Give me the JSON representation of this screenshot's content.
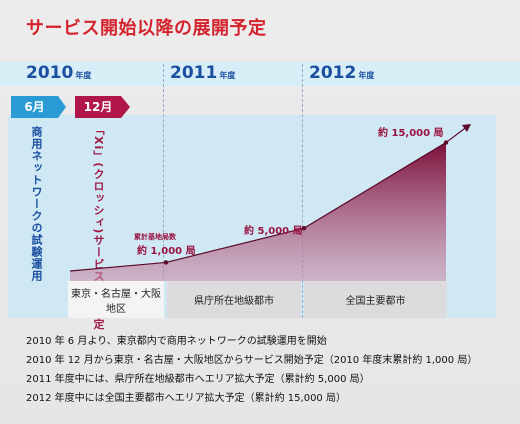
{
  "title": "サービス開始以降の展開予定",
  "years": [
    {
      "label": "2010",
      "suffix": "年度"
    },
    {
      "label": "2011",
      "suffix": "年度"
    },
    {
      "label": "2012",
      "suffix": "年度"
    }
  ],
  "tags": {
    "jun": "6月",
    "dec": "12月"
  },
  "vertical_texts": {
    "trial": "商用ネットワークの試験運用",
    "xi": "「Xi」(クロッシィ)サービス開始予定"
  },
  "regions": [
    "東京・名古屋・大阪地区",
    "県庁所在地級都市",
    "全国主要都市"
  ],
  "notes": [
    "2010 年 6 月より、東京都内で商用ネットワークの試験運用を開始",
    "2010 年 12 月から東京・名古屋・大阪地区からサービス開始予定（2010 年度末累計約 1,000 局）",
    "2011 年度中には、県庁所在地級都市へエリア拡大予定（累計約 5,000 局）",
    "2012 年度中には全国主要都市へエリア拡大予定（累計約 15,000 局）"
  ],
  "colors": {
    "accent": "#d5232e",
    "year": "#1b4fa0",
    "area": "#8e1240",
    "panel": "#cfe8f4"
  },
  "chart_data": {
    "type": "area",
    "title": "サービス開始以降の展開予定",
    "x": [
      "2010年12月",
      "2010年度末",
      "2011年度末",
      "2012年度末"
    ],
    "series": [
      {
        "values": [
          0,
          1000,
          5000,
          15000
        ]
      }
    ],
    "annotations": [
      {
        "prefix": "累計基地局数",
        "text": "約 1,000 局",
        "value": 1000
      },
      {
        "text": "約 5,000 局",
        "value": 5000
      },
      {
        "text": "約 15,000 局",
        "value": 15000
      }
    ],
    "ylim": [
      0,
      16000
    ],
    "grid": false
  }
}
